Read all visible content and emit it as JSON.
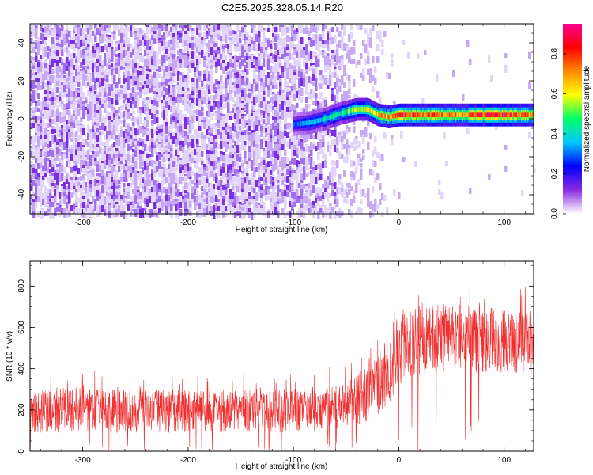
{
  "title": "C2E5.2025.328.05.14.R20",
  "chart_data": [
    {
      "type": "heatmap",
      "name": "spectrogram",
      "xlabel": "Height of straight line (km)",
      "ylabel": "Frequency (Hz)",
      "xlim": [
        -350,
        128
      ],
      "ylim": [
        -50,
        50
      ],
      "xticks": [
        -300,
        -200,
        -100,
        0,
        100
      ],
      "yticks": [
        -40,
        -20,
        0,
        20,
        40
      ],
      "colorbar": {
        "label": "Normalized spectral amplitude",
        "range": [
          0,
          0.95
        ],
        "ticks": [
          "0.0",
          "0.2",
          "0.4",
          "0.6",
          "0.8"
        ],
        "colors": [
          "#ffffff",
          "#8a2be2",
          "#0000ff",
          "#00c8ff",
          "#00ff66",
          "#ffff00",
          "#ff8800",
          "#ff0000",
          "#ff0090"
        ]
      },
      "signal_ridge": {
        "x": [
          -100,
          -85,
          -70,
          -55,
          -40,
          -30,
          -20,
          -10,
          0,
          20,
          60,
          90,
          100,
          128
        ],
        "y": [
          -3,
          -2,
          0,
          3,
          5,
          5,
          2,
          1,
          2,
          2,
          2,
          2,
          2,
          2
        ],
        "peak_amplitude": [
          0.3,
          0.35,
          0.4,
          0.45,
          0.55,
          0.6,
          0.65,
          0.7,
          0.85,
          0.75,
          0.7,
          0.85,
          0.8,
          0.7
        ]
      }
    },
    {
      "type": "line",
      "name": "snr",
      "xlabel": "Height of straight line (km)",
      "ylabel": "SNR (10 * v/v)",
      "xlim": [
        -350,
        128
      ],
      "ylim": [
        0,
        920
      ],
      "xticks": [
        -300,
        -200,
        -100,
        0,
        100
      ],
      "yticks": [
        0,
        200,
        400,
        600,
        800
      ],
      "color": "#f03030",
      "envelope": {
        "x": [
          -350,
          -300,
          -250,
          -200,
          -150,
          -100,
          -60,
          -40,
          -20,
          -10,
          0,
          10,
          30,
          60,
          100,
          128
        ],
        "low": [
          90,
          90,
          90,
          90,
          90,
          90,
          100,
          120,
          170,
          220,
          320,
          360,
          380,
          380,
          380,
          370
        ],
        "high": [
          300,
          310,
          300,
          300,
          300,
          305,
          330,
          380,
          450,
          540,
          680,
          720,
          720,
          700,
          690,
          680
        ]
      }
    }
  ]
}
